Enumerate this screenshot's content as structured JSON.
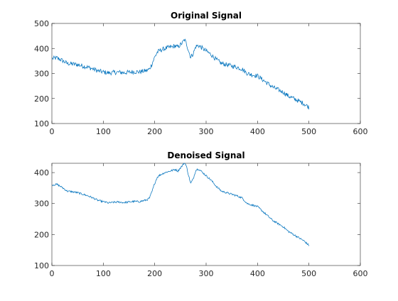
{
  "chart_data": [
    {
      "type": "line",
      "title": "Original Signal",
      "xlabel": "",
      "ylabel": "",
      "xlim": [
        0,
        600
      ],
      "ylim": [
        100,
        500
      ],
      "xticks": [
        0,
        100,
        200,
        300,
        400,
        500,
        600
      ],
      "yticks": [
        100,
        200,
        300,
        400,
        500
      ],
      "grid": false,
      "series": [
        {
          "color": "#0072BD",
          "noise": "high",
          "x": [
            1,
            10,
            20,
            30,
            40,
            50,
            60,
            70,
            80,
            90,
            100,
            110,
            120,
            130,
            140,
            150,
            160,
            170,
            180,
            185,
            190,
            195,
            200,
            205,
            210,
            220,
            230,
            240,
            245,
            250,
            255,
            258,
            262,
            266,
            270,
            275,
            280,
            285,
            290,
            300,
            310,
            320,
            330,
            340,
            350,
            360,
            370,
            380,
            390,
            400,
            410,
            420,
            430,
            440,
            450,
            460,
            470,
            480,
            490,
            500
          ],
          "y": [
            360,
            362,
            352,
            340,
            338,
            335,
            330,
            325,
            318,
            310,
            306,
            302,
            304,
            305,
            303,
            305,
            307,
            306,
            310,
            312,
            318,
            340,
            365,
            385,
            392,
            400,
            405,
            410,
            405,
            415,
            425,
            435,
            418,
            390,
            365,
            380,
            408,
            412,
            405,
            390,
            375,
            355,
            340,
            335,
            330,
            325,
            318,
            300,
            295,
            290,
            275,
            260,
            245,
            235,
            225,
            210,
            200,
            190,
            180,
            165
          ]
        }
      ]
    },
    {
      "type": "line",
      "title": "Denoised Signal",
      "xlabel": "",
      "ylabel": "",
      "xlim": [
        0,
        600
      ],
      "ylim": [
        100,
        430
      ],
      "xticks": [
        0,
        100,
        200,
        300,
        400,
        500,
        600
      ],
      "yticks": [
        100,
        200,
        300,
        400
      ],
      "grid": false,
      "series": [
        {
          "color": "#0072BD",
          "noise": "low",
          "x": [
            1,
            10,
            20,
            30,
            40,
            50,
            60,
            70,
            80,
            90,
            100,
            110,
            120,
            130,
            140,
            150,
            160,
            170,
            180,
            185,
            190,
            195,
            200,
            205,
            210,
            220,
            230,
            240,
            245,
            250,
            255,
            258,
            262,
            266,
            270,
            275,
            280,
            285,
            290,
            300,
            310,
            320,
            330,
            340,
            350,
            360,
            370,
            380,
            390,
            400,
            410,
            420,
            430,
            440,
            450,
            460,
            470,
            480,
            490,
            500
          ],
          "y": [
            360,
            362,
            352,
            340,
            338,
            335,
            330,
            325,
            318,
            310,
            306,
            302,
            304,
            305,
            303,
            305,
            307,
            306,
            310,
            312,
            318,
            340,
            365,
            385,
            392,
            400,
            405,
            410,
            405,
            415,
            425,
            435,
            418,
            390,
            365,
            380,
            408,
            412,
            405,
            390,
            375,
            355,
            340,
            335,
            330,
            325,
            318,
            300,
            295,
            290,
            275,
            260,
            245,
            235,
            225,
            210,
            200,
            190,
            180,
            165
          ]
        }
      ]
    }
  ]
}
